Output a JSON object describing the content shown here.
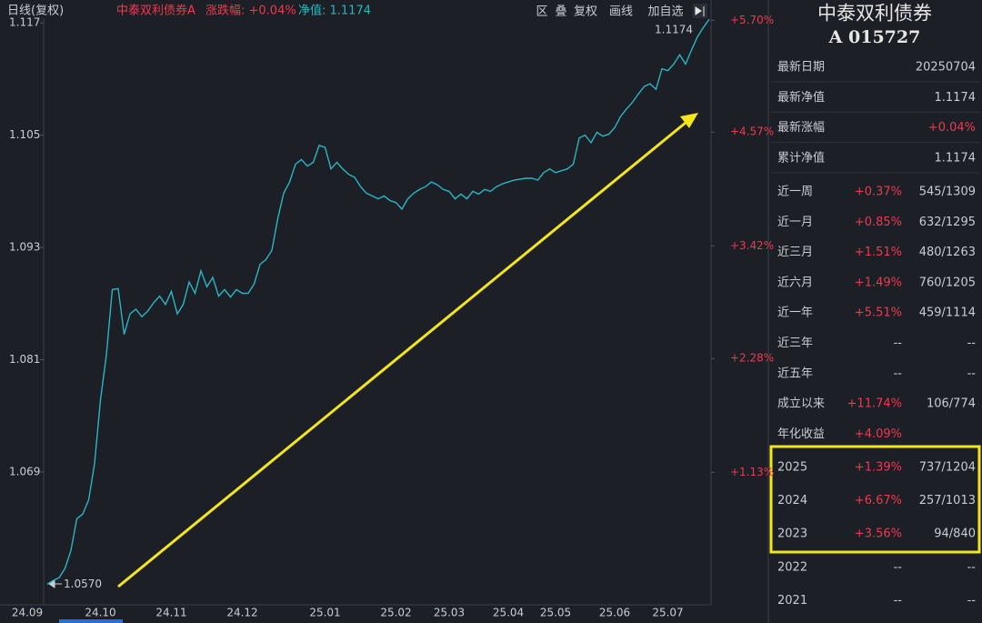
{
  "toolbar": {
    "period": "日线(复权)",
    "fund": "中泰双利债券A",
    "change": "涨跌幅: +0.04%",
    "nav": "净值: 1.1174",
    "buttons": [
      "区",
      "叠",
      "复权",
      "画线",
      "加自选"
    ]
  },
  "chart_data": {
    "type": "line",
    "color": "#2bb5c4",
    "categories": [
      "24.09",
      null,
      null,
      null,
      null,
      null,
      null,
      null,
      null,
      "24.10",
      null,
      null,
      null,
      null,
      null,
      null,
      null,
      null,
      null,
      null,
      null,
      "24.11",
      null,
      null,
      null,
      null,
      null,
      null,
      null,
      null,
      null,
      null,
      null,
      "24.12",
      null,
      null,
      null,
      null,
      null,
      null,
      null,
      null,
      null,
      null,
      null,
      null,
      null,
      "25.01",
      null,
      null,
      null,
      null,
      null,
      null,
      null,
      null,
      null,
      null,
      null,
      "25.02",
      null,
      null,
      null,
      null,
      null,
      null,
      null,
      null,
      "25.03",
      null,
      null,
      null,
      null,
      null,
      null,
      null,
      null,
      null,
      "25.04",
      null,
      null,
      null,
      null,
      null,
      null,
      null,
      "25.05",
      null,
      null,
      null,
      null,
      null,
      null,
      null,
      null,
      null,
      "25.06",
      null,
      null,
      null,
      null,
      null,
      null,
      null,
      null,
      "25.07",
      null,
      null,
      null,
      null,
      null,
      null,
      null
    ],
    "values": [
      1.057,
      1.0574,
      1.0577,
      1.0587,
      1.0606,
      1.064,
      1.0645,
      1.066,
      1.0699,
      1.0767,
      1.0815,
      1.0885,
      1.0886,
      1.0837,
      1.0859,
      1.0864,
      1.0856,
      1.0862,
      1.0871,
      1.0878,
      1.0869,
      1.0883,
      1.0859,
      1.0869,
      1.0893,
      1.0881,
      1.0905,
      1.0888,
      1.0898,
      1.0878,
      1.0885,
      1.0877,
      1.0885,
      1.0881,
      1.0881,
      1.0891,
      1.0912,
      1.0917,
      1.0927,
      1.0961,
      1.0988,
      1.1,
      1.1019,
      1.1024,
      1.1017,
      1.1021,
      1.1039,
      1.1037,
      1.1014,
      1.1021,
      1.1014,
      1.1008,
      1.1005,
      1.0995,
      1.0988,
      1.0985,
      1.0982,
      1.0985,
      1.098,
      1.0978,
      1.0971,
      1.0982,
      1.0988,
      1.0992,
      1.0995,
      1.1,
      1.0997,
      1.0992,
      1.099,
      1.0982,
      1.0987,
      1.0982,
      1.099,
      1.0987,
      1.0992,
      1.099,
      1.0995,
      1.0998,
      1.1,
      1.1002,
      1.1003,
      1.1004,
      1.1004,
      1.1002,
      1.101,
      1.1014,
      1.101,
      1.1012,
      1.1014,
      1.1019,
      1.1047,
      1.105,
      1.1042,
      1.1053,
      1.1049,
      1.1051,
      1.1058,
      1.107,
      1.1078,
      1.1085,
      1.1094,
      1.1102,
      1.1105,
      1.1099,
      1.1121,
      1.1119,
      1.1126,
      1.1136,
      1.1126,
      1.1141,
      1.1155,
      1.1165,
      1.1174
    ],
    "ylim": [
      1.0548,
      1.1177
    ],
    "yticks": [
      1.117,
      1.105,
      1.093,
      1.081,
      1.069
    ],
    "y2lim": [
      -0.21,
      5.74
    ],
    "y2ticks": [
      {
        "value": 5.7,
        "label": "+5.70%"
      },
      {
        "value": 4.57,
        "label": "+4.57%"
      },
      {
        "value": 3.42,
        "label": "+3.42%"
      },
      {
        "value": 2.28,
        "label": "+2.28%"
      },
      {
        "value": 1.13,
        "label": "+1.13%"
      }
    ],
    "annotations": [
      "1.0570",
      "1.1174"
    ]
  },
  "panel": {
    "title": "中泰双利债券",
    "code": "A 015727",
    "info": [
      [
        "最新日期",
        "20250704"
      ],
      [
        "最新净值",
        "1.1174"
      ],
      [
        "最新涨幅",
        "+0.04%"
      ],
      [
        "累计净值",
        "1.1174"
      ]
    ],
    "stats": [
      [
        "近一周",
        "+0.37%",
        "545/1309"
      ],
      [
        "近一月",
        "+0.85%",
        "632/1295"
      ],
      [
        "近三月",
        "+1.51%",
        "480/1263"
      ],
      [
        "近六月",
        "+1.49%",
        "760/1205"
      ],
      [
        "近一年",
        "+5.51%",
        "459/1114"
      ],
      [
        "近三年",
        "--",
        "--"
      ],
      [
        "近五年",
        "--",
        "--"
      ],
      [
        "成立以来",
        "+11.74%",
        "106/774"
      ],
      [
        "年化收益",
        "+4.09%",
        ""
      ]
    ],
    "years": [
      [
        "2025",
        "+1.39%",
        "737/1204"
      ],
      [
        "2024",
        "+6.67%",
        "257/1013"
      ],
      [
        "2023",
        "+3.56%",
        "94/840"
      ],
      [
        "2022",
        "--",
        "--"
      ],
      [
        "2021",
        "--",
        "--"
      ]
    ]
  }
}
